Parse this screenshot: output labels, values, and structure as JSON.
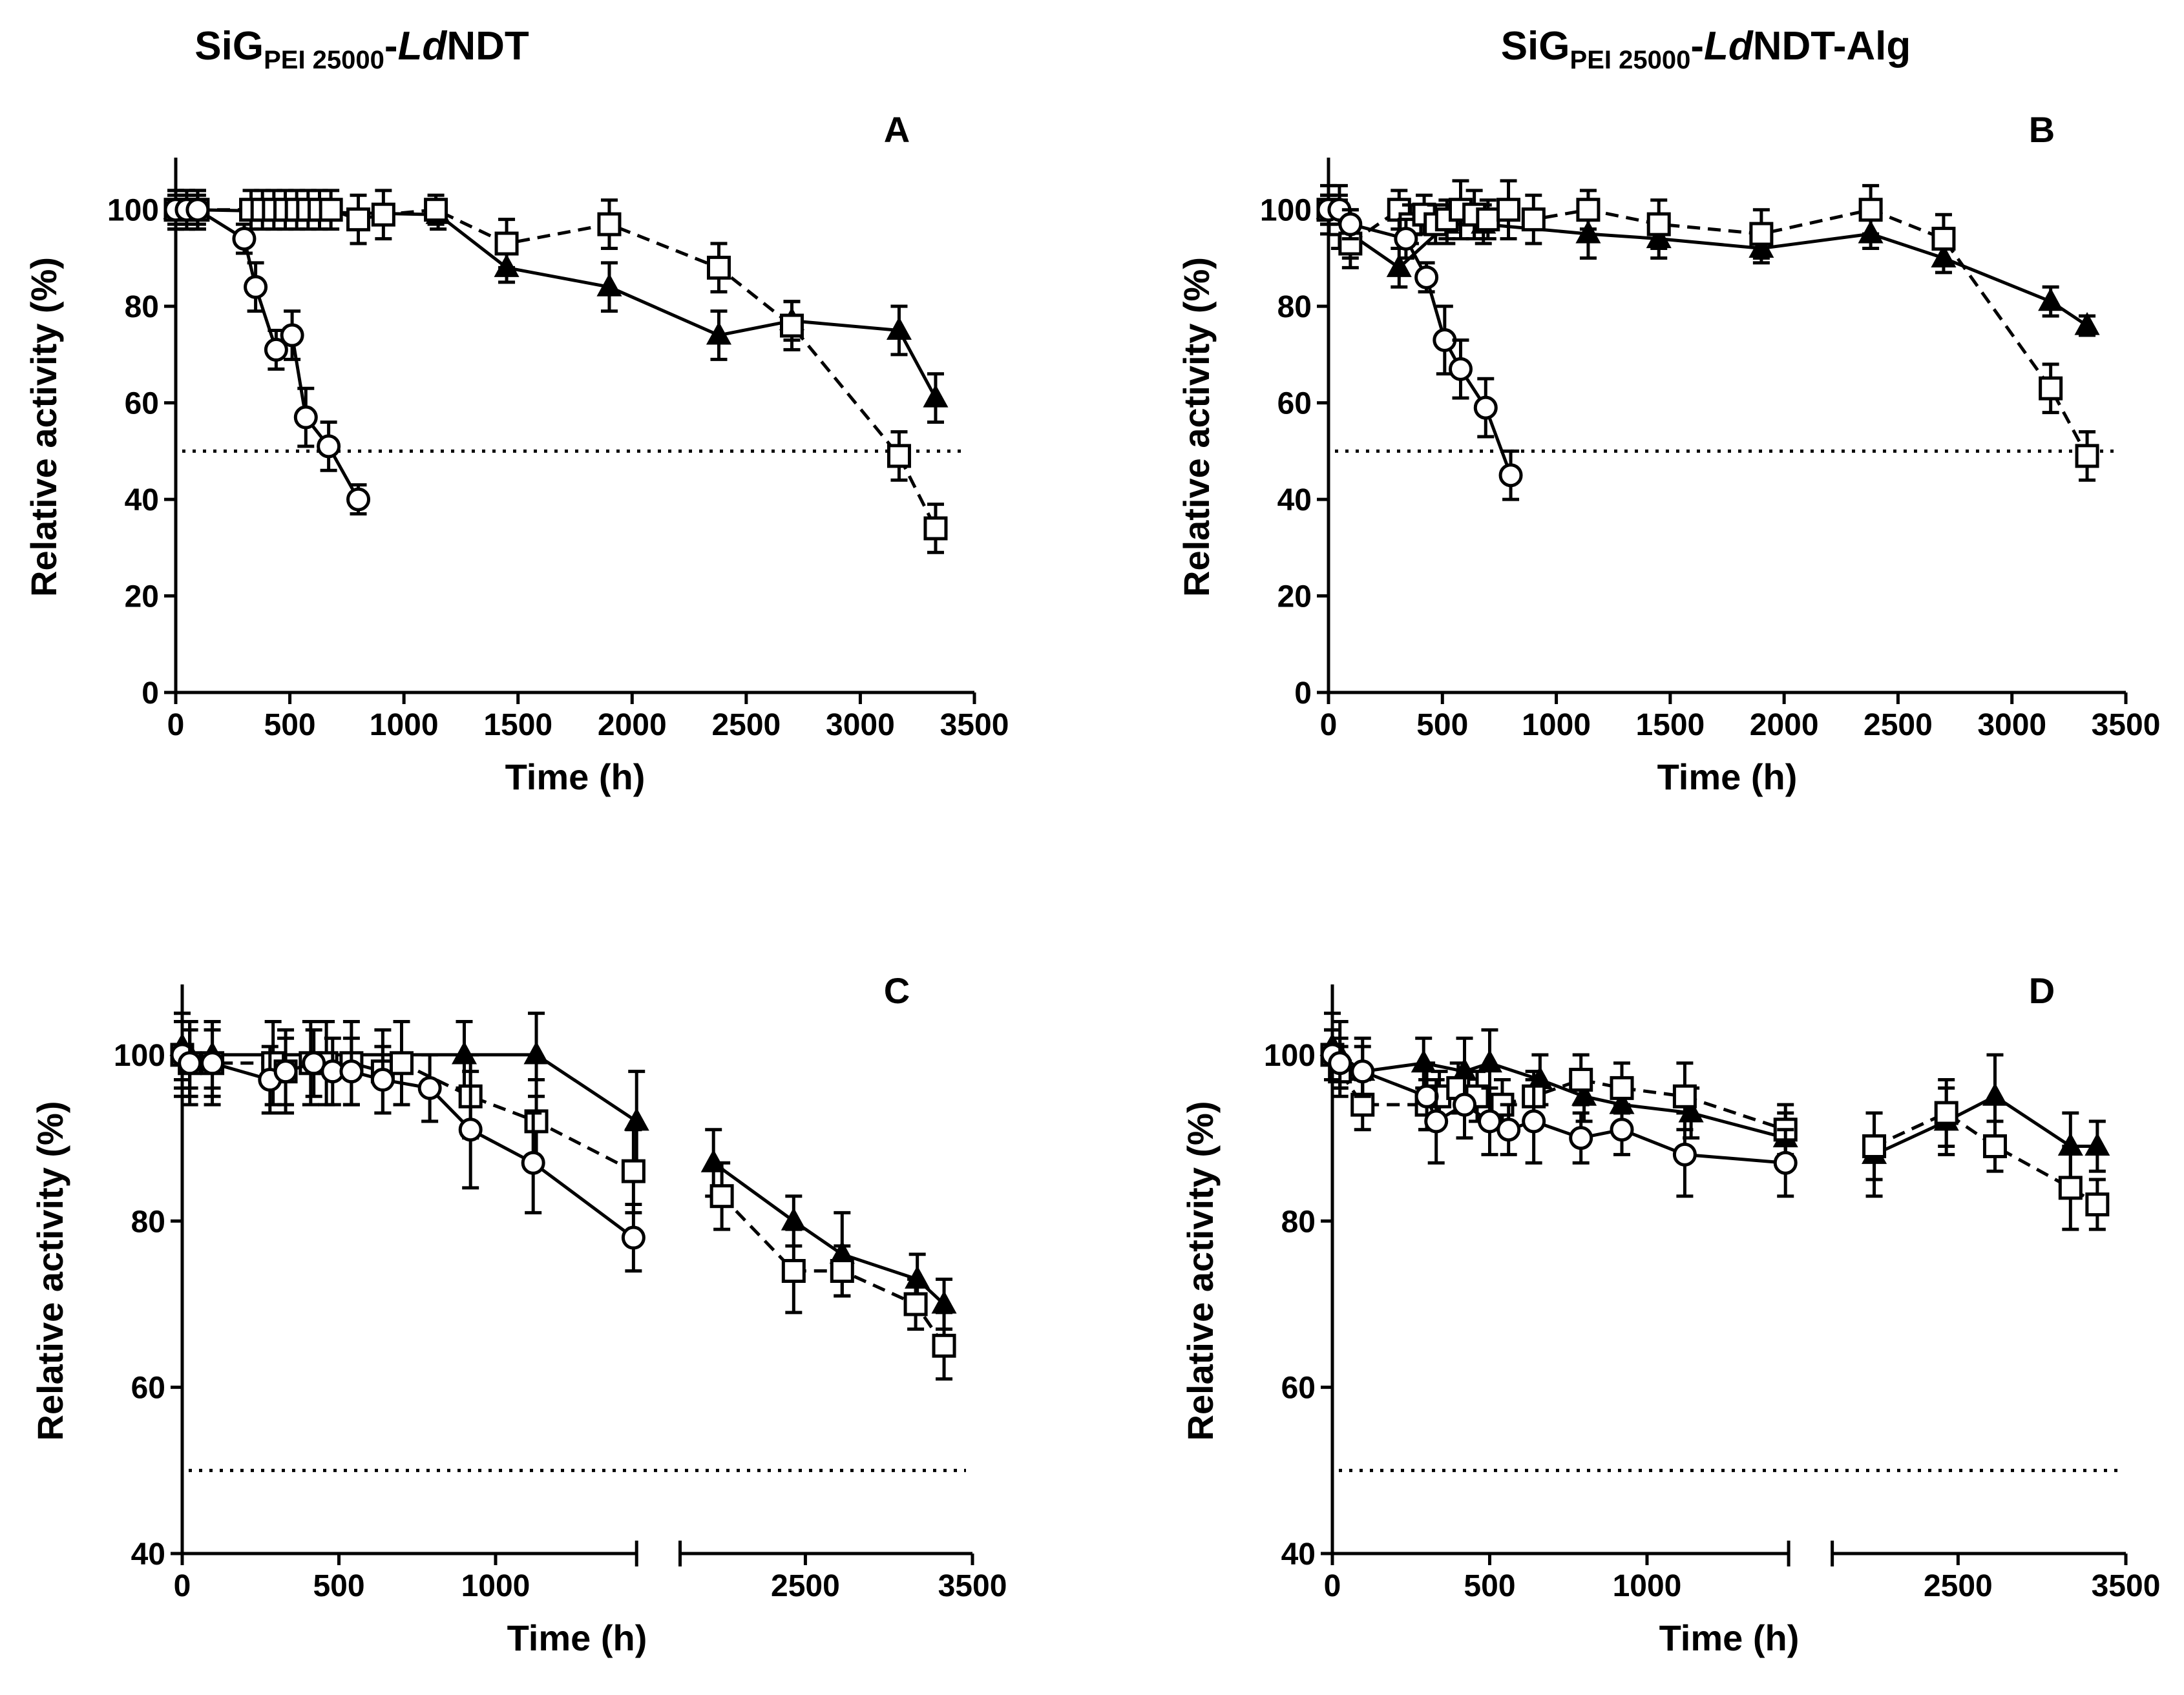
{
  "column_titles": [
    {
      "prefix": "SiG",
      "subscript": "PEI 25000",
      "mid": "-",
      "italic": "Ld",
      "suffix": "NDT"
    },
    {
      "prefix": "SiG",
      "subscript": "PEI 25000",
      "mid": "-",
      "italic": "Ld",
      "suffix": "NDT-Alg"
    }
  ],
  "colors": {
    "ink": "#000000",
    "marker_fill": "#ffffff"
  },
  "chart_data": [
    {
      "panel": "A",
      "type": "line",
      "xlabel": "Time (h)",
      "ylabel": "Relative activity (%)",
      "xlim": [
        0,
        3500
      ],
      "ylim": [
        0,
        110
      ],
      "xticks": [
        0,
        500,
        1000,
        1500,
        2000,
        2500,
        3000,
        3500
      ],
      "xtick_labels": [
        "0",
        "500",
        "1000",
        "1500",
        "2000",
        "2500",
        "3000",
        "3500"
      ],
      "yticks": [
        0,
        20,
        40,
        60,
        80,
        100
      ],
      "ytick_labels": [
        "0",
        "20",
        "40",
        "60",
        "80",
        "100"
      ],
      "reference_line": 50,
      "axis_break": null,
      "series": [
        {
          "name": "triangle",
          "marker": "triangle-filled",
          "line": "solid",
          "x": [
            0,
            48,
            96,
            1150,
            1450,
            1900,
            2380,
            2700,
            3170,
            3330
          ],
          "y": [
            100,
            100,
            100,
            99,
            88,
            84,
            74,
            77,
            75,
            61
          ],
          "err": [
            4,
            4,
            4,
            3,
            3,
            5,
            5,
            4,
            5,
            5
          ]
        },
        {
          "name": "square",
          "marker": "square-open",
          "line": "dashed",
          "x": [
            0,
            48,
            96,
            330,
            380,
            430,
            480,
            530,
            580,
            630,
            680,
            800,
            910,
            1140,
            1450,
            1900,
            2380,
            2700,
            3170,
            3330
          ],
          "y": [
            100,
            100,
            100,
            100,
            100,
            100,
            100,
            100,
            100,
            100,
            100,
            98,
            99,
            100,
            93,
            97,
            88,
            76,
            49,
            34
          ],
          "err": [
            4,
            4,
            4,
            4,
            4,
            4,
            4,
            4,
            4,
            4,
            4,
            5,
            5,
            3,
            5,
            5,
            5,
            5,
            5,
            5
          ]
        },
        {
          "name": "circle",
          "marker": "circle-open",
          "line": "solid",
          "x": [
            0,
            48,
            96,
            300,
            350,
            440,
            510,
            570,
            670,
            800
          ],
          "y": [
            100,
            100,
            100,
            94,
            84,
            71,
            74,
            57,
            51,
            40
          ],
          "err": [
            3,
            3,
            3,
            3,
            5,
            4,
            5,
            6,
            5,
            3
          ]
        }
      ]
    },
    {
      "panel": "B",
      "type": "line",
      "xlabel": "Time (h)",
      "ylabel": "Relative activity (%)",
      "xlim": [
        0,
        3500
      ],
      "ylim": [
        0,
        110
      ],
      "xticks": [
        0,
        500,
        1000,
        1500,
        2000,
        2500,
        3000,
        3500
      ],
      "xtick_labels": [
        "0",
        "500",
        "1000",
        "1500",
        "2000",
        "2500",
        "3000",
        "3500"
      ],
      "yticks": [
        0,
        20,
        40,
        60,
        80,
        100
      ],
      "ytick_labels": [
        "0",
        "20",
        "40",
        "60",
        "80",
        "100"
      ],
      "reference_line": 50,
      "axis_break": null,
      "series": [
        {
          "name": "triangle",
          "marker": "triangle-filled",
          "line": "solid",
          "x": [
            0,
            48,
            96,
            310,
            520,
            680,
            1140,
            1450,
            1900,
            2380,
            2700,
            3170,
            3330
          ],
          "y": [
            100,
            100,
            95,
            88,
            97,
            97,
            95,
            94,
            92,
            95,
            90,
            81,
            76
          ],
          "err": [
            5,
            5,
            5,
            4,
            4,
            4,
            5,
            4,
            3,
            3,
            3,
            3,
            2
          ]
        },
        {
          "name": "square",
          "marker": "square-open",
          "line": "dashed",
          "x": [
            0,
            48,
            96,
            310,
            360,
            420,
            470,
            520,
            580,
            640,
            700,
            790,
            900,
            1140,
            1450,
            1900,
            2380,
            2700,
            3170,
            3330
          ],
          "y": [
            100,
            97,
            93,
            100,
            97,
            99,
            97,
            98,
            100,
            99,
            98,
            100,
            98,
            100,
            97,
            95,
            100,
            94,
            63,
            49
          ],
          "err": [
            3,
            5,
            5,
            4,
            4,
            4,
            4,
            4,
            6,
            5,
            4,
            6,
            5,
            4,
            5,
            5,
            5,
            5,
            5,
            5
          ]
        },
        {
          "name": "circle",
          "marker": "circle-open",
          "line": "solid",
          "x": [
            0,
            48,
            96,
            340,
            430,
            510,
            580,
            690,
            800
          ],
          "y": [
            100,
            100,
            97,
            94,
            86,
            73,
            67,
            59,
            45
          ],
          "err": [
            3,
            3,
            3,
            4,
            3,
            7,
            6,
            6,
            5
          ]
        }
      ]
    },
    {
      "panel": "C",
      "type": "line",
      "xlabel": "Time (h)",
      "ylabel": "Relative activity (%)",
      "xlim": [
        0,
        3500
      ],
      "ylim": [
        40,
        108
      ],
      "xticks": [
        0,
        500,
        1000,
        2500,
        3500
      ],
      "xtick_labels": [
        "0",
        "500",
        "1000",
        "2500",
        "3500"
      ],
      "yticks": [
        40,
        60,
        80,
        100
      ],
      "ytick_labels": [
        "40",
        "60",
        "80",
        "100"
      ],
      "reference_line": 50,
      "axis_break": {
        "left_segment": [
          0,
          1450
        ],
        "right_segment": [
          1750,
          3500
        ],
        "right_labels_start": 2000
      },
      "series": [
        {
          "name": "triangle",
          "marker": "triangle-filled",
          "line": "solid",
          "x": [
            0,
            24,
            96,
            900,
            1130,
            1450,
            1950,
            2430,
            2720,
            3170,
            3330
          ],
          "y": [
            101,
            100,
            100,
            100,
            100,
            92,
            87,
            80,
            76,
            73,
            70
          ],
          "err": [
            4,
            4,
            4,
            4,
            5,
            6,
            4,
            3,
            5,
            3,
            3
          ]
        },
        {
          "name": "square",
          "marker": "square-open",
          "line": "dashed",
          "x": [
            0,
            24,
            96,
            290,
            330,
            410,
            460,
            540,
            640,
            700,
            920,
            1130,
            1440,
            2000,
            2430,
            2720,
            3160,
            3330
          ],
          "y": [
            100,
            99,
            99,
            99,
            98,
            99,
            99,
            99,
            98,
            99,
            95,
            92,
            86,
            83,
            74,
            74,
            70,
            65
          ],
          "err": [
            5,
            5,
            5,
            5,
            5,
            5,
            5,
            5,
            5,
            5,
            5,
            5,
            5,
            4,
            5,
            3,
            3,
            4
          ]
        },
        {
          "name": "circle",
          "marker": "circle-open",
          "line": "solid",
          "x": [
            0,
            24,
            96,
            280,
            330,
            420,
            480,
            540,
            640,
            790,
            920,
            1120,
            1440
          ],
          "y": [
            100,
            99,
            99,
            97,
            98,
            99,
            98,
            98,
            97,
            96,
            91,
            87,
            78
          ],
          "err": [
            4,
            4,
            4,
            4,
            4,
            4,
            4,
            4,
            4,
            4,
            7,
            6,
            4
          ]
        }
      ]
    },
    {
      "panel": "D",
      "type": "line",
      "xlabel": "Time (h)",
      "ylabel": "Relative activity (%)",
      "xlim": [
        0,
        3500
      ],
      "ylim": [
        40,
        108
      ],
      "xticks": [
        0,
        500,
        1000,
        2500,
        3500
      ],
      "xtick_labels": [
        "0",
        "500",
        "1000",
        "2500",
        "3500"
      ],
      "yticks": [
        40,
        60,
        80,
        100
      ],
      "ytick_labels": [
        "40",
        "60",
        "80",
        "100"
      ],
      "reference_line": 50,
      "axis_break": {
        "left_segment": [
          0,
          1450
        ],
        "right_segment": [
          1750,
          3500
        ],
        "right_labels_start": 2000
      },
      "series": [
        {
          "name": "triangle",
          "marker": "triangle-filled",
          "line": "solid",
          "x": [
            0,
            24,
            96,
            290,
            420,
            500,
            660,
            800,
            920,
            1140,
            1440,
            2000,
            2430,
            2720,
            3170,
            3330
          ],
          "y": [
            101,
            100,
            98,
            99,
            98,
            99,
            97,
            95,
            94,
            93,
            90,
            88,
            92,
            95,
            89,
            89
          ],
          "err": [
            4,
            4,
            4,
            3,
            4,
            4,
            3,
            3,
            3,
            3,
            3,
            5,
            4,
            5,
            4,
            3
          ]
        },
        {
          "name": "square",
          "marker": "square-open",
          "line": "dashed",
          "x": [
            0,
            24,
            96,
            300,
            340,
            400,
            460,
            540,
            640,
            790,
            920,
            1120,
            1440,
            2000,
            2430,
            2720,
            3170,
            3330
          ],
          "y": [
            100,
            98,
            94,
            94,
            95,
            96,
            95,
            94,
            95,
            97,
            96,
            95,
            91,
            89,
            93,
            89,
            84,
            82
          ],
          "err": [
            3,
            3,
            3,
            3,
            3,
            3,
            3,
            3,
            3,
            3,
            3,
            4,
            3,
            4,
            4,
            3,
            5,
            3
          ]
        },
        {
          "name": "circle",
          "marker": "circle-open",
          "line": "solid",
          "x": [
            0,
            24,
            96,
            300,
            330,
            420,
            500,
            560,
            640,
            790,
            920,
            1120,
            1440
          ],
          "y": [
            100,
            99,
            98,
            95,
            92,
            94,
            92,
            91,
            92,
            90,
            91,
            88,
            87
          ],
          "err": [
            3,
            3,
            3,
            4,
            5,
            4,
            4,
            3,
            5,
            3,
            3,
            5,
            4
          ]
        }
      ]
    }
  ]
}
